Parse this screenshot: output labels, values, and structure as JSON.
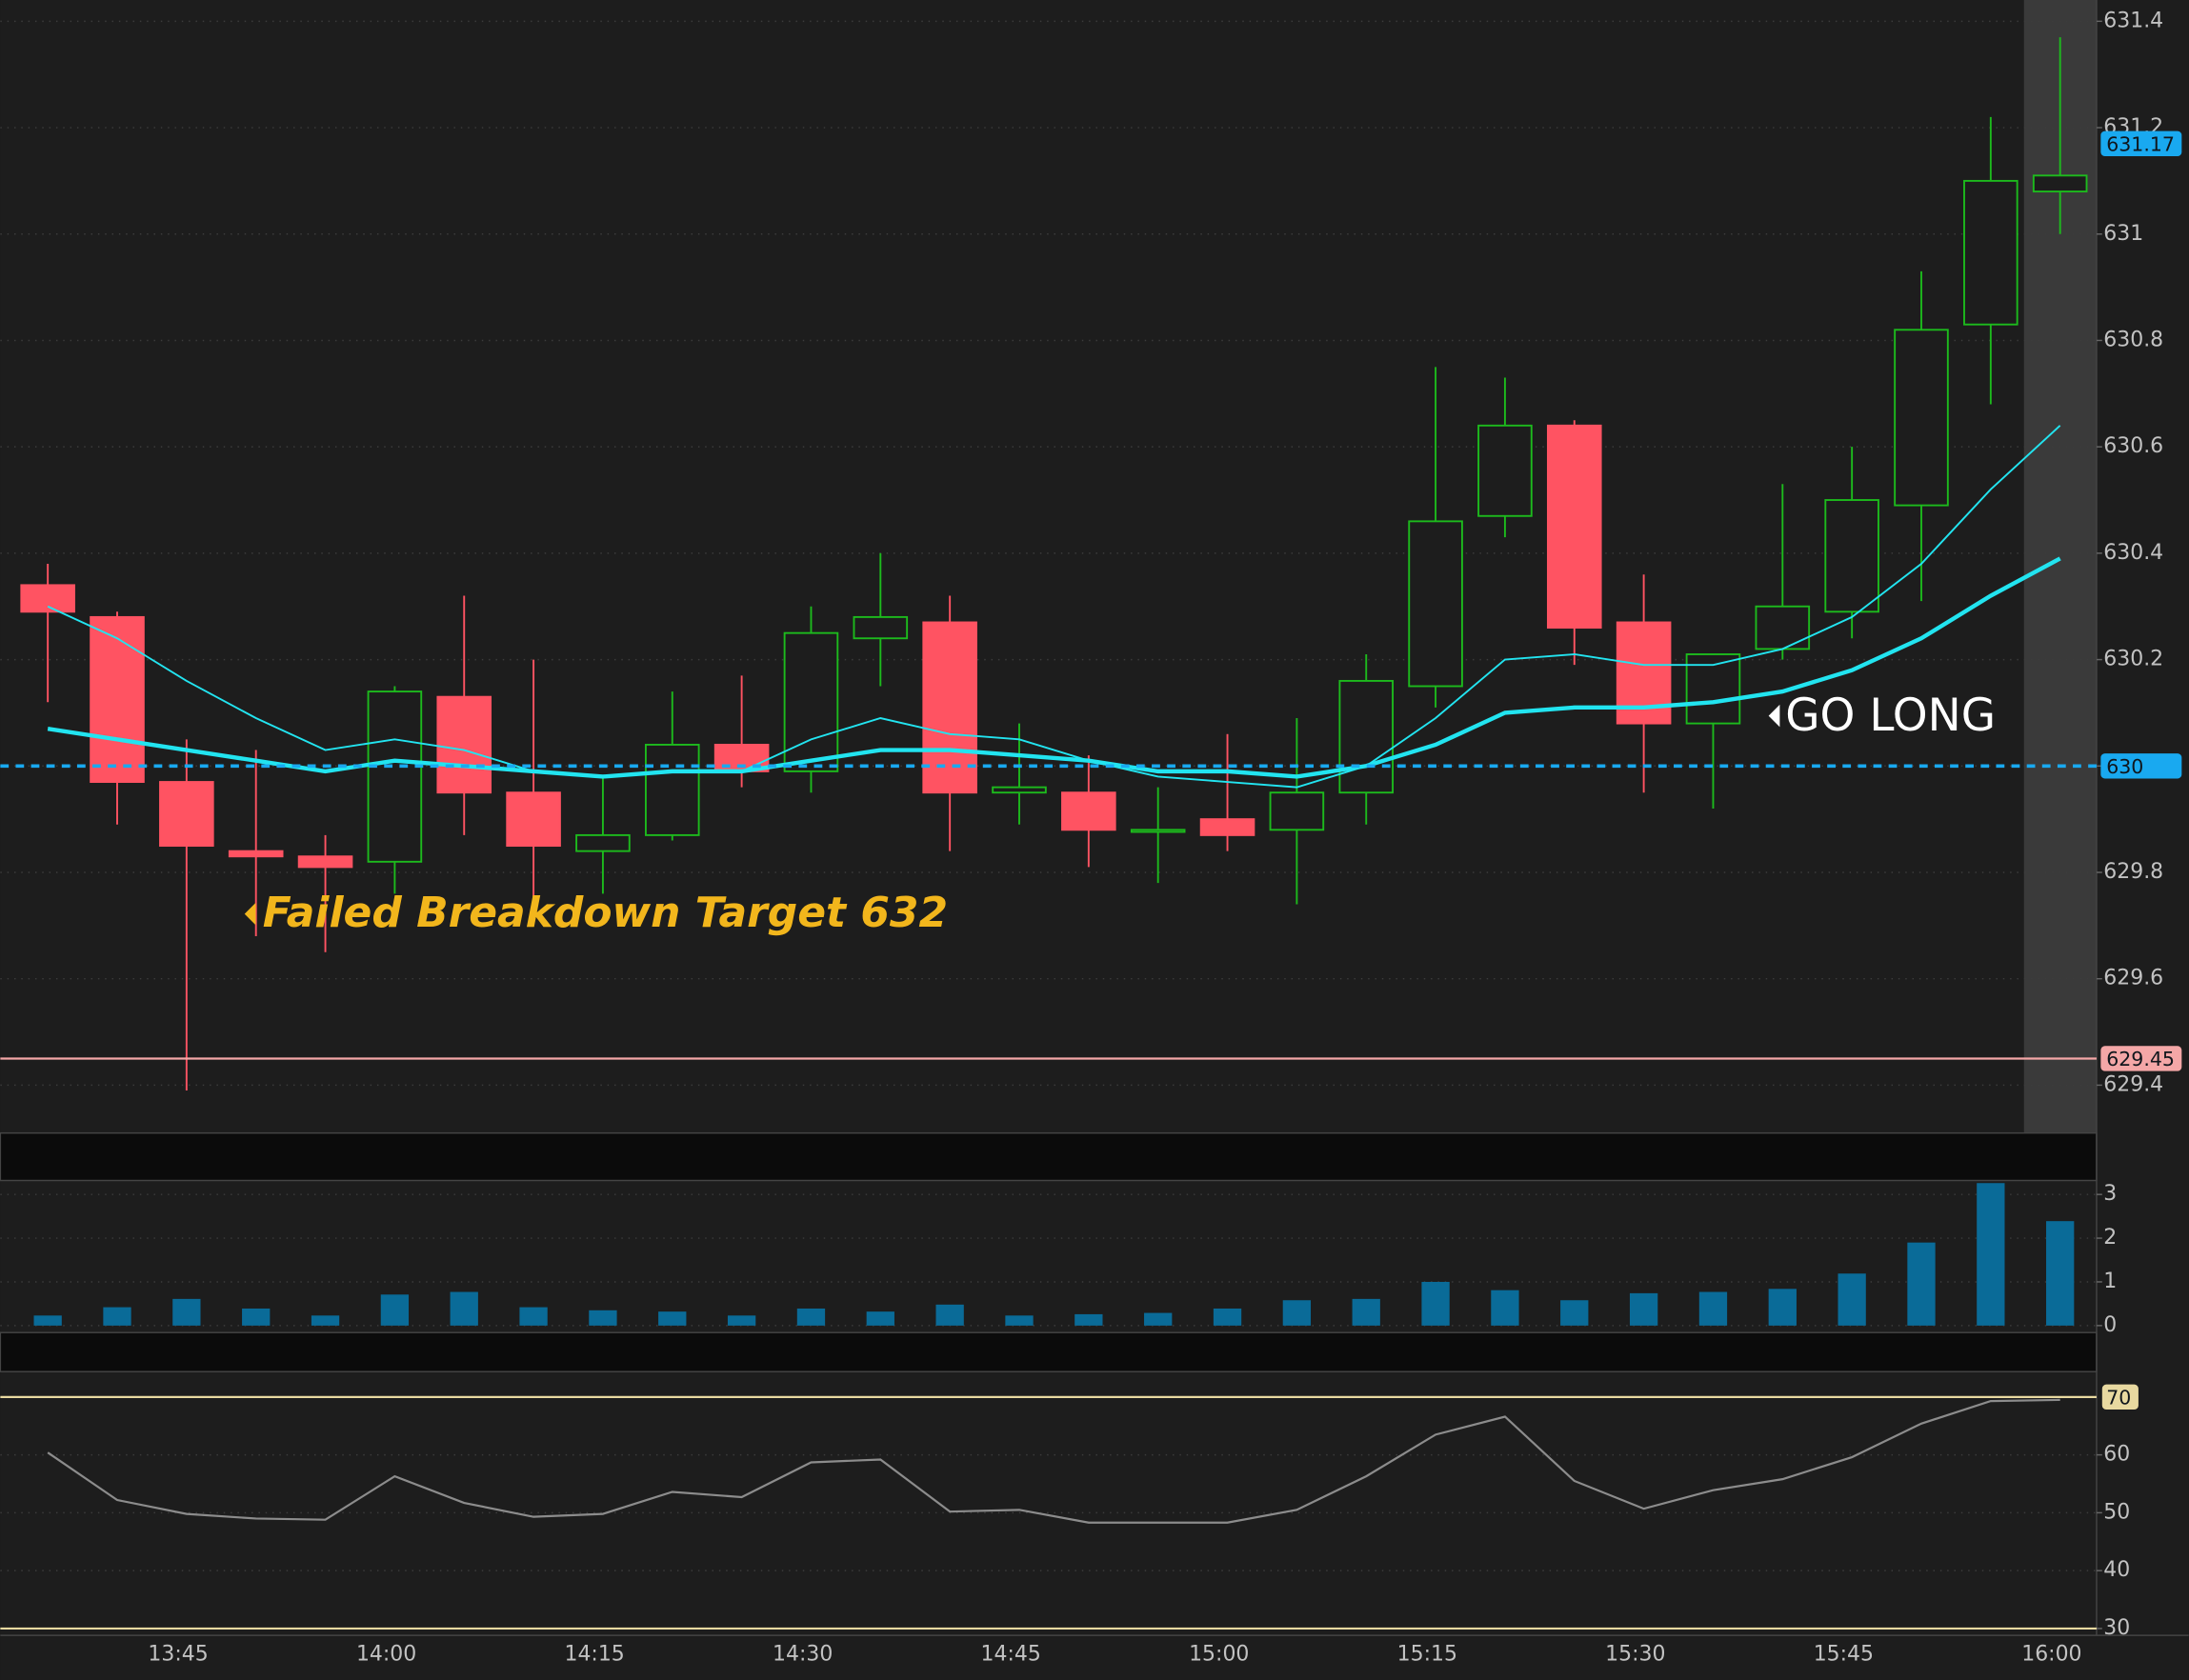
{
  "chart_data": [
    {
      "type": "candlestick",
      "categories": [
        null,
        null,
        "13:45",
        null,
        null,
        "14:00",
        null,
        null,
        "14:15",
        null,
        null,
        "14:30",
        null,
        null,
        "14:45",
        null,
        null,
        "15:00",
        null,
        null,
        "15:15",
        null,
        null,
        "15:30",
        null,
        null,
        "15:45",
        null,
        null,
        "16:00"
      ],
      "open": [
        630.34,
        630.28,
        629.97,
        629.84,
        629.83,
        629.82,
        630.13,
        629.95,
        629.84,
        629.87,
        630.04,
        629.99,
        630.24,
        630.27,
        629.95,
        629.95,
        629.88,
        629.9,
        629.88,
        629.95,
        630.15,
        630.47,
        630.64,
        630.27,
        630.08,
        630.22,
        630.29,
        630.49,
        630.83,
        631.08
      ],
      "high": [
        630.38,
        630.29,
        630.05,
        630.03,
        629.87,
        630.15,
        630.32,
        630.2,
        629.98,
        630.14,
        630.17,
        630.3,
        630.4,
        630.32,
        630.08,
        630.02,
        629.96,
        630.06,
        630.09,
        630.21,
        630.75,
        630.73,
        630.65,
        630.36,
        630.21,
        630.53,
        630.6,
        630.93,
        631.22,
        631.37
      ],
      "low": [
        630.12,
        629.89,
        629.39,
        629.68,
        629.65,
        629.76,
        629.87,
        629.74,
        629.76,
        629.86,
        629.96,
        629.95,
        630.15,
        629.84,
        629.89,
        629.81,
        629.78,
        629.84,
        629.74,
        629.89,
        630.11,
        630.43,
        630.19,
        629.95,
        629.92,
        630.2,
        630.24,
        630.31,
        630.68,
        631.0
      ],
      "close": [
        630.29,
        629.97,
        629.85,
        629.83,
        629.81,
        630.14,
        629.95,
        629.85,
        629.87,
        630.04,
        629.99,
        630.25,
        630.28,
        629.95,
        629.96,
        629.88,
        629.88,
        629.87,
        629.95,
        630.16,
        630.46,
        630.64,
        630.26,
        630.08,
        630.21,
        630.3,
        630.5,
        630.82,
        631.1,
        631.11
      ],
      "up_color": "#1dba1d",
      "down_color": "#ff5362",
      "series": [
        {
          "color": "#22e4f0",
          "width": 1.3,
          "values": [
            630.3,
            630.24,
            630.16,
            630.09,
            630.03,
            630.05,
            630.03,
            629.99,
            629.98,
            629.99,
            629.99,
            630.05,
            630.09,
            630.06,
            630.05,
            630.01,
            629.98,
            629.97,
            629.96,
            630.0,
            630.09,
            630.2,
            630.21,
            630.19,
            630.19,
            630.22,
            630.28,
            630.38,
            630.52,
            630.64
          ]
        },
        {
          "color": "#22e4f0",
          "width": 3,
          "values": [
            630.07,
            630.05,
            630.03,
            630.01,
            629.99,
            630.01,
            630.0,
            629.99,
            629.98,
            629.99,
            629.99,
            630.01,
            630.03,
            630.03,
            630.02,
            630.01,
            629.99,
            629.99,
            629.98,
            630.0,
            630.04,
            630.1,
            630.11,
            630.11,
            630.12,
            630.14,
            630.18,
            630.24,
            630.32,
            630.39
          ]
        }
      ],
      "levels": [
        {
          "value": 631.17,
          "color": "#19a9f0",
          "style": "none"
        },
        {
          "value": 630,
          "color": "#19a9f0",
          "style": "dashed"
        },
        {
          "value": 629.45,
          "color": "#f4a7a7",
          "style": "solid"
        }
      ],
      "ylim": [
        629.31,
        631.44
      ],
      "yticks": [
        629.4,
        629.6,
        629.8,
        630,
        630.2,
        630.4,
        630.6,
        630.8,
        631,
        631.2,
        631.4
      ],
      "grid": true,
      "annotations": [
        "Failed Breakdown Target 632",
        "GO LONG"
      ]
    },
    {
      "type": "bar",
      "color": "#0a6b98",
      "values": [
        0.23,
        0.42,
        0.61,
        0.39,
        0.23,
        0.71,
        0.77,
        0.42,
        0.35,
        0.32,
        0.23,
        0.39,
        0.32,
        0.48,
        0.23,
        0.26,
        0.29,
        0.39,
        0.58,
        0.61,
        1.0,
        0.81,
        0.58,
        0.74,
        0.77,
        0.84,
        1.19,
        1.9,
        3.26,
        2.39
      ],
      "ylim": [
        0,
        3.32
      ],
      "yticks": [
        0,
        1,
        2,
        3
      ],
      "grid": true
    },
    {
      "type": "line",
      "color": "#8c8c8c",
      "values": [
        60.4,
        52.2,
        49.8,
        49.0,
        48.8,
        56.3,
        51.7,
        49.3,
        49.8,
        53.6,
        52.7,
        58.7,
        59.2,
        50.2,
        50.5,
        48.3,
        48.3,
        48.3,
        50.5,
        56.3,
        63.5,
        66.6,
        55.5,
        50.7,
        53.9,
        55.8,
        59.6,
        65.4,
        69.3,
        69.5
      ],
      "levels": [
        {
          "value": 70,
          "color": "#e8d9a0",
          "badge": true
        },
        {
          "value": 30,
          "color": "#e8d9a0",
          "badge": false
        }
      ],
      "ylim": [
        29.3,
        73.9
      ],
      "yticks": [
        30,
        40,
        50,
        60
      ],
      "grid": true
    }
  ]
}
